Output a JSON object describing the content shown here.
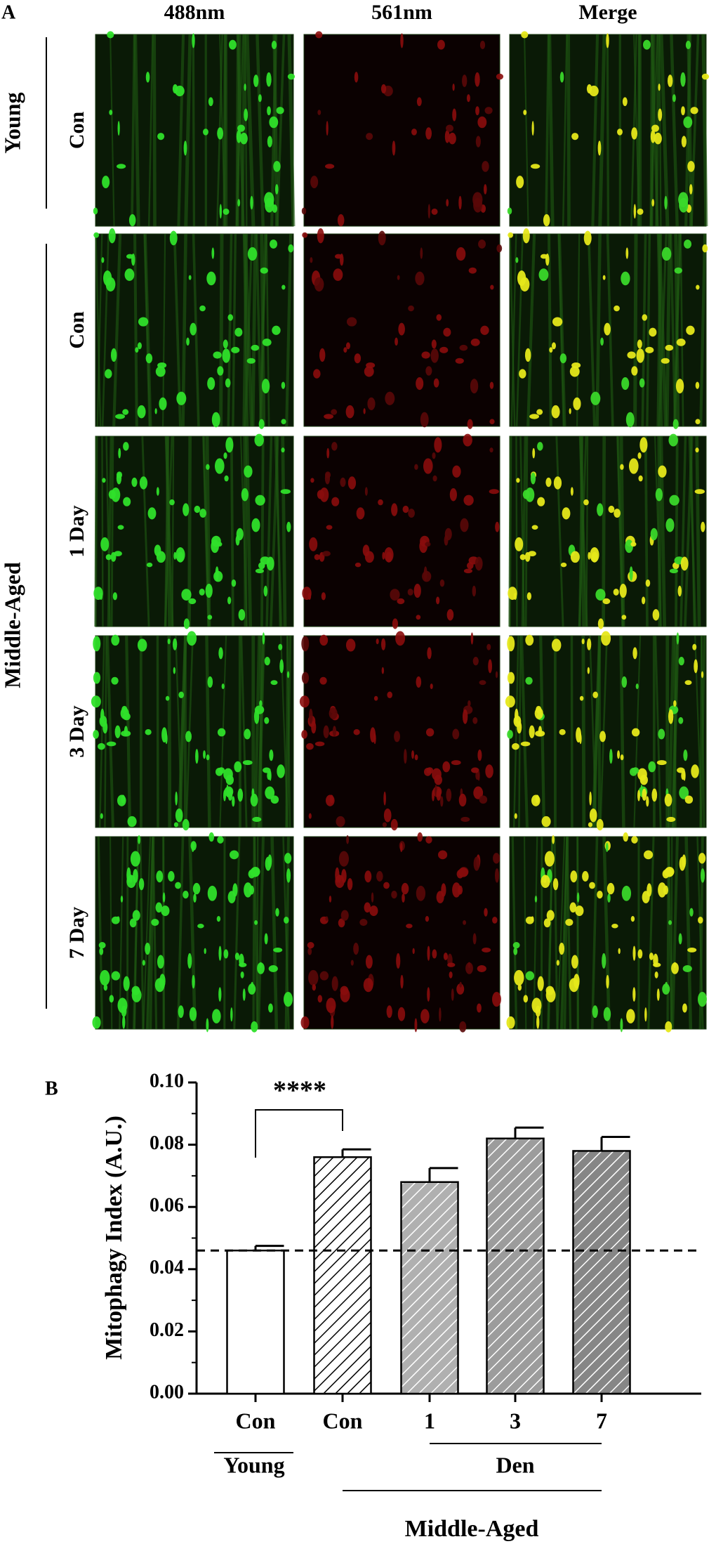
{
  "panel_a": {
    "label": "A",
    "columns": [
      "488nm",
      "561nm",
      "Merge"
    ],
    "rows": [
      "Con",
      "Con",
      "1 Day",
      "3 Day",
      "7 Day"
    ],
    "groups": [
      "Young",
      "Middle-Aged"
    ]
  },
  "chart_data": {
    "type": "bar",
    "panel_label": "B",
    "y_label": "Mitophagy  Index (A.U.)",
    "categories": [
      "Con",
      "Con",
      "1",
      "3",
      "7"
    ],
    "values": [
      0.046,
      0.076,
      0.068,
      0.082,
      0.078
    ],
    "errors": [
      0.0015,
      0.0025,
      0.0045,
      0.0035,
      0.0045
    ],
    "colors": [
      "#ffffff",
      "#ffffff",
      "#b0b0b0",
      "#9c9c9c",
      "#868686"
    ],
    "hatch": [
      false,
      true,
      true,
      true,
      true
    ],
    "ylim": [
      0,
      0.1
    ],
    "yticks": [
      {
        "value": 0,
        "label": "0.00"
      },
      {
        "value": 0.02,
        "label": "0.02"
      },
      {
        "value": 0.04,
        "label": "0.04"
      },
      {
        "value": 0.06,
        "label": "0.06"
      },
      {
        "value": 0.08,
        "label": "0.08"
      },
      {
        "value": 0.1,
        "label": "0.10"
      }
    ],
    "reference_line": 0.046,
    "significance": "****",
    "group_labels": [
      "Young",
      "Den",
      "Middle-Aged"
    ]
  }
}
